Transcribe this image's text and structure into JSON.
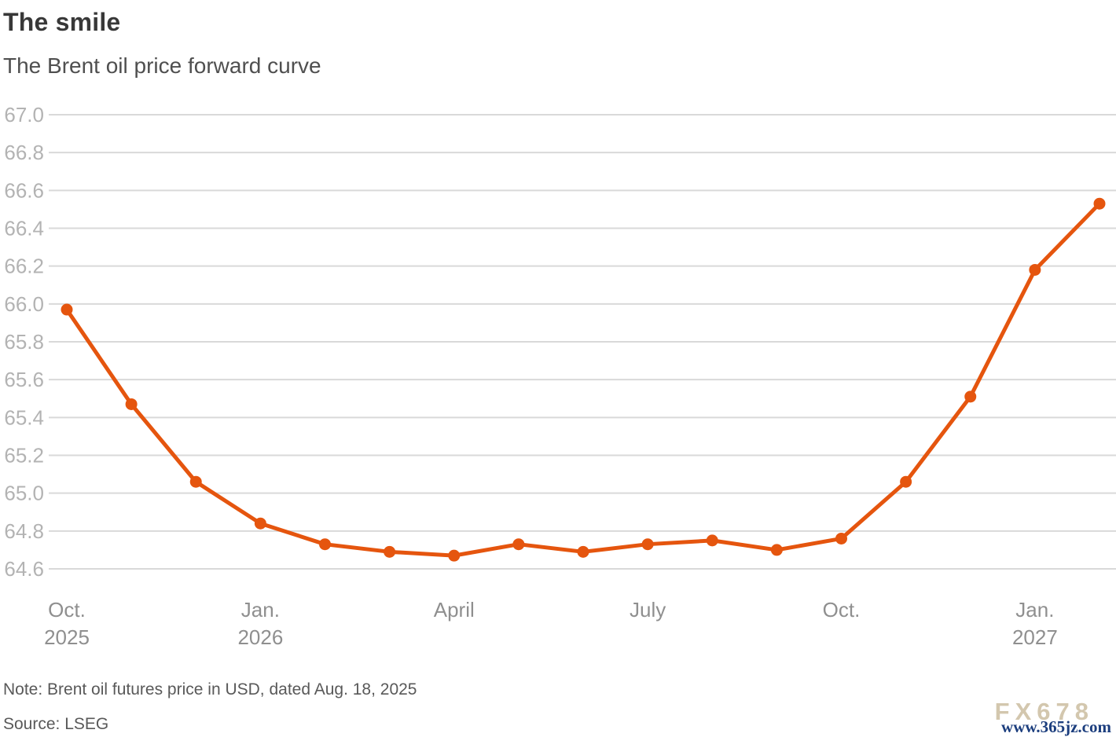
{
  "header": {
    "title": "The smile",
    "subtitle": "The Brent oil price forward curve"
  },
  "footer": {
    "note": "Note: Brent oil futures price in USD, dated Aug. 18, 2025",
    "source": "Source: LSEG"
  },
  "watermark": {
    "brand": "FX678",
    "url": "www.365jz.com"
  },
  "colors": {
    "line": "#e5550e",
    "grid": "#d9d9d9",
    "y_tick_label": "#b3b3b3",
    "x_tick_label": "#8f8f8f",
    "background": "#ffffff"
  },
  "chart_data": {
    "type": "line",
    "title": "The smile",
    "subtitle": "The Brent oil price forward curve",
    "xlabel": "",
    "ylabel": "",
    "ylim": [
      64.6,
      67.0
    ],
    "y_tick_step": 0.2,
    "y_ticks": [
      67.0,
      66.8,
      66.6,
      66.4,
      66.2,
      66.0,
      65.8,
      65.6,
      65.4,
      65.2,
      65.0,
      64.8,
      64.6
    ],
    "grid": "horizontal",
    "legend": "none",
    "markers": true,
    "x_ticks": [
      {
        "index": 0,
        "label": "Oct.",
        "sublabel": "2025"
      },
      {
        "index": 3,
        "label": "Jan.",
        "sublabel": "2026"
      },
      {
        "index": 6,
        "label": "April",
        "sublabel": ""
      },
      {
        "index": 9,
        "label": "July",
        "sublabel": ""
      },
      {
        "index": 12,
        "label": "Oct.",
        "sublabel": ""
      },
      {
        "index": 15,
        "label": "Jan.",
        "sublabel": "2027"
      }
    ],
    "series": [
      {
        "name": "Brent oil futures price (USD)",
        "color": "#e5550e",
        "values": [
          65.97,
          65.47,
          65.06,
          64.84,
          64.73,
          64.69,
          64.67,
          64.73,
          64.69,
          64.73,
          64.75,
          64.7,
          64.76,
          65.06,
          65.51,
          66.18,
          66.53
        ]
      }
    ]
  }
}
